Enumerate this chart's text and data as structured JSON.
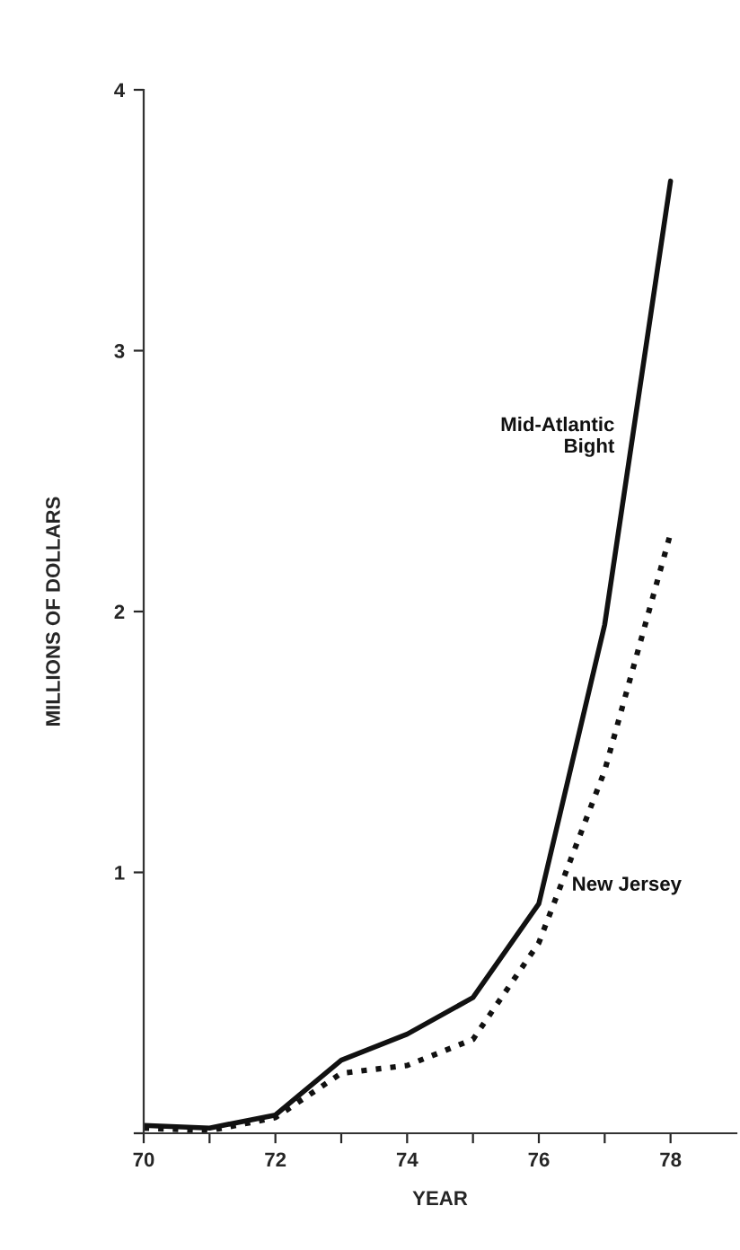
{
  "chart_data": {
    "type": "line",
    "xlabel": "YEAR",
    "ylabel": "MILLIONS OF DOLLARS",
    "x": [
      70,
      71,
      72,
      73,
      74,
      75,
      76,
      77,
      78
    ],
    "series": [
      {
        "name": "Mid-Atlantic\nBight",
        "color": "#111111",
        "line_style": "solid",
        "values": [
          0.03,
          0.02,
          0.07,
          0.28,
          0.38,
          0.52,
          0.88,
          1.95,
          3.65
        ]
      },
      {
        "name": "New Jersey",
        "color": "#111111",
        "line_style": "dotted",
        "values": [
          0.02,
          0.01,
          0.06,
          0.23,
          0.26,
          0.36,
          0.73,
          1.39,
          2.3
        ]
      }
    ],
    "xlim": [
      70,
      79
    ],
    "xticks": [
      70,
      {
        "value": 71,
        "label": null
      },
      72,
      {
        "value": 73,
        "label": null
      },
      74,
      {
        "value": 75,
        "label": null
      },
      76,
      {
        "value": 77,
        "label": null
      },
      78
    ],
    "ylim": [
      0,
      4
    ],
    "yticks": [
      {
        "value": 0,
        "label": null
      },
      1,
      2,
      3,
      4
    ],
    "grid": false,
    "legend": false
  }
}
